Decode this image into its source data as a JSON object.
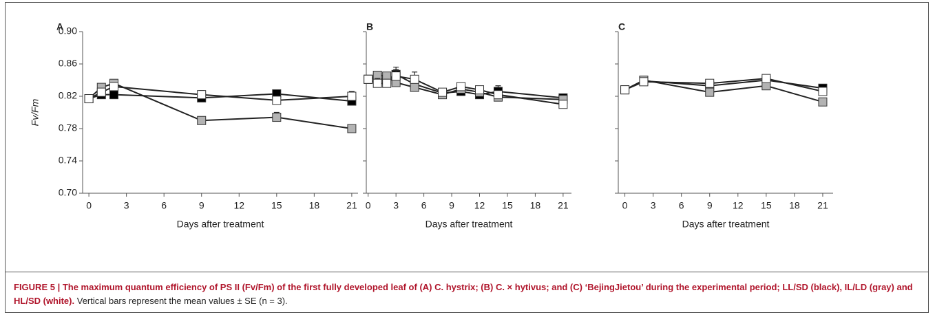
{
  "chart_data": [
    {
      "type": "line",
      "panel": "A",
      "ylabel": "Fv/Fm",
      "xlabel": "Days after treatment",
      "xlim": [
        -0.5,
        21.5
      ],
      "xticks": [
        0,
        3,
        6,
        9,
        12,
        15,
        18,
        21
      ],
      "ylim": [
        0.7,
        0.9
      ],
      "yticks": [
        {
          "value": 0.7,
          "label": "0.70"
        },
        {
          "value": 0.74,
          "label": "0.74"
        },
        {
          "value": 0.78,
          "label": "0.78"
        },
        {
          "value": 0.82,
          "label": "0.82"
        },
        {
          "value": 0.86,
          "label": "0.86"
        },
        {
          "value": 0.9,
          "label": "0.90"
        }
      ],
      "x": [
        0,
        1,
        2,
        9,
        15,
        21
      ],
      "series": [
        {
          "name": "LL/SD",
          "color": "#000000",
          "values": [
            0.817,
            0.822,
            0.822,
            0.818,
            0.823,
            0.814
          ],
          "errors": [
            0.002,
            0.006,
            0.003,
            0.004,
            0.003,
            0.004
          ]
        },
        {
          "name": "IL/LD",
          "color": "#b3b3b3",
          "values": [
            0.817,
            0.831,
            0.836,
            0.79,
            0.794,
            0.78
          ],
          "errors": [
            0.002,
            0.003,
            0.003,
            0.002,
            0.006,
            0.002
          ]
        },
        {
          "name": "HL/SD",
          "color": "#ffffff",
          "values": [
            0.817,
            0.825,
            0.832,
            0.822,
            0.815,
            0.82
          ],
          "errors": [
            0.002,
            0.003,
            0.003,
            0.005,
            0.003,
            0.006
          ]
        }
      ]
    },
    {
      "type": "line",
      "panel": "B",
      "xlabel": "Days after treatment",
      "xlim": [
        -0.2,
        21.9
      ],
      "xticks": [
        0,
        3,
        6,
        9,
        12,
        15,
        18,
        21
      ],
      "ylim": [
        0.7,
        0.9
      ],
      "yticks": [
        0.7,
        0.74,
        0.78,
        0.82,
        0.86,
        0.9
      ],
      "x": [
        0,
        1,
        2,
        3,
        5,
        8,
        10,
        12,
        14,
        21
      ],
      "series": [
        {
          "name": "LL/SD",
          "color": "#000000",
          "values": [
            0.841,
            0.843,
            0.84,
            0.847,
            0.835,
            0.824,
            0.826,
            0.822,
            0.826,
            0.818
          ],
          "errors": [
            0.002,
            0.004,
            0.004,
            0.006,
            0.003,
            0.002,
            0.003,
            0.003,
            0.007,
            0.002
          ]
        },
        {
          "name": "IL/LD",
          "color": "#b3b3b3",
          "values": [
            0.841,
            0.846,
            0.845,
            0.837,
            0.831,
            0.822,
            0.829,
            0.825,
            0.819,
            0.816
          ],
          "errors": [
            0.002,
            0.003,
            0.003,
            0.004,
            0.003,
            0.002,
            0.003,
            0.007,
            0.003,
            0.003
          ]
        },
        {
          "name": "HL/SD",
          "color": "#ffffff",
          "values": [
            0.841,
            0.836,
            0.836,
            0.845,
            0.841,
            0.825,
            0.832,
            0.828,
            0.822,
            0.81
          ],
          "errors": [
            0.002,
            0.006,
            0.005,
            0.011,
            0.009,
            0.003,
            0.003,
            0.004,
            0.003,
            0.005
          ]
        }
      ]
    },
    {
      "type": "line",
      "panel": "C",
      "xlabel": "Days after treatment",
      "xlim": [
        -0.7,
        22.1
      ],
      "xticks": [
        0,
        3,
        6,
        9,
        12,
        15,
        18,
        21
      ],
      "ylim": [
        0.7,
        0.9
      ],
      "yticks": [
        0.7,
        0.74,
        0.78,
        0.82,
        0.86,
        0.9
      ],
      "x": [
        0,
        2,
        9,
        15,
        21
      ],
      "series": [
        {
          "name": "LL/SD",
          "color": "#000000",
          "values": [
            0.828,
            0.839,
            0.833,
            0.84,
            0.83
          ],
          "errors": [
            0.002,
            0.002,
            0.003,
            0.003,
            0.002
          ]
        },
        {
          "name": "IL/LD",
          "color": "#b3b3b3",
          "values": [
            0.828,
            0.84,
            0.825,
            0.833,
            0.813
          ],
          "errors": [
            0.002,
            0.002,
            0.002,
            0.002,
            0.002
          ]
        },
        {
          "name": "HL/SD",
          "color": "#ffffff",
          "values": [
            0.828,
            0.838,
            0.836,
            0.842,
            0.826
          ],
          "errors": [
            0.002,
            0.002,
            0.003,
            0.003,
            0.003
          ]
        }
      ]
    }
  ],
  "caption_bold": "FIGURE 5 | The maximum quantum efficiency of PS II (Fv/Fm) of the first fully developed leaf of (A) C. hystrix; (B) C. × hytivus; and (C) ‘BejingJietou’ during the experimental period; LL/SD (black), IL/LD (gray) and HL/SD (white).",
  "caption_text": "Vertical bars represent the mean values ± SE (n = 3)."
}
